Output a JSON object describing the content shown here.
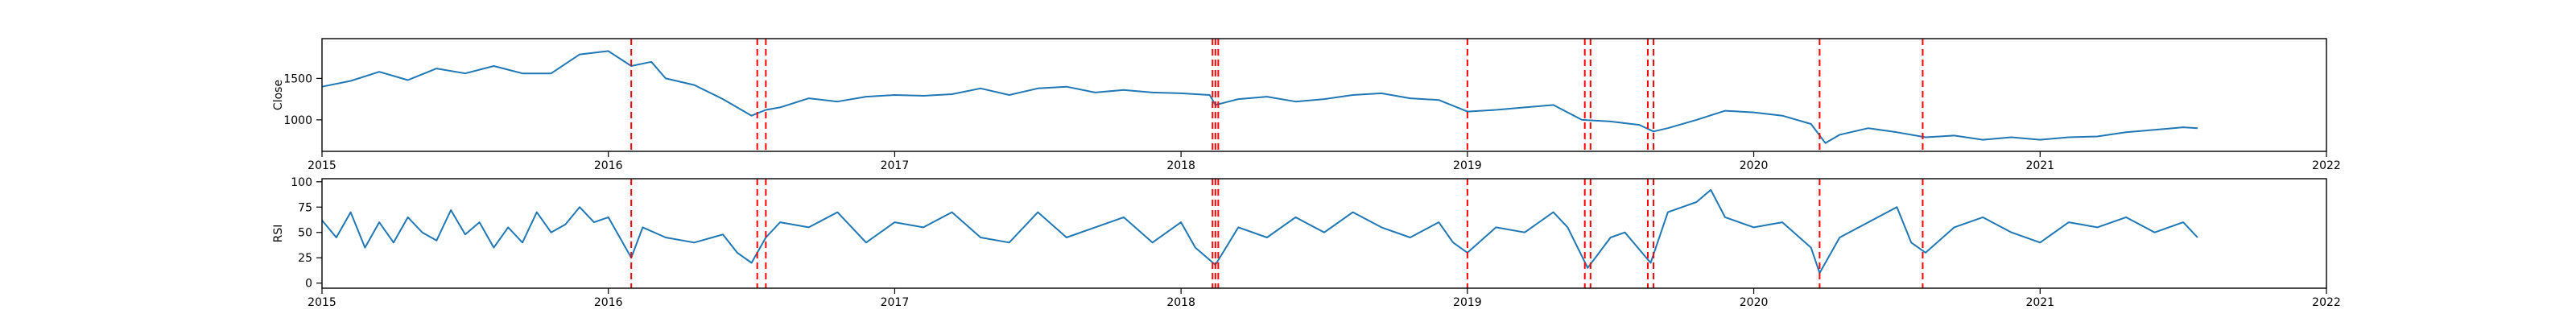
{
  "chart_data": [
    {
      "type": "line",
      "ylabel": "Close",
      "xlabel": "",
      "xlim": [
        2015.0,
        2022.0
      ],
      "ylim": [
        620,
        1980
      ],
      "x_ticks": [
        2015,
        2016,
        2017,
        2018,
        2019,
        2020,
        2021,
        2022
      ],
      "x_tick_labels": [
        "2015",
        "2016",
        "2017",
        "2018",
        "2019",
        "2020",
        "2021",
        "2022"
      ],
      "y_ticks": [
        1000,
        1500
      ],
      "y_tick_labels": [
        "1000",
        "1500"
      ],
      "grid": false,
      "series": [
        {
          "color": "#1f77b4",
          "x": [
            2015.0,
            2015.1,
            2015.2,
            2015.3,
            2015.4,
            2015.5,
            2015.6,
            2015.7,
            2015.8,
            2015.9,
            2016.0,
            2016.08,
            2016.15,
            2016.2,
            2016.3,
            2016.4,
            2016.5,
            2016.55,
            2016.6,
            2016.7,
            2016.8,
            2016.9,
            2017.0,
            2017.1,
            2017.2,
            2017.3,
            2017.4,
            2017.5,
            2017.6,
            2017.7,
            2017.8,
            2017.9,
            2018.0,
            2018.1,
            2018.12,
            2018.2,
            2018.3,
            2018.4,
            2018.5,
            2018.6,
            2018.7,
            2018.8,
            2018.9,
            2019.0,
            2019.1,
            2019.2,
            2019.3,
            2019.4,
            2019.5,
            2019.6,
            2019.65,
            2019.7,
            2019.8,
            2019.9,
            2020.0,
            2020.1,
            2020.2,
            2020.25,
            2020.3,
            2020.4,
            2020.5,
            2020.6,
            2020.7,
            2020.8,
            2020.9,
            2021.0,
            2021.1,
            2021.2,
            2021.3,
            2021.4,
            2021.5,
            2021.55
          ],
          "y": [
            1400,
            1470,
            1580,
            1480,
            1620,
            1560,
            1650,
            1560,
            1560,
            1790,
            1830,
            1650,
            1700,
            1500,
            1420,
            1250,
            1050,
            1120,
            1150,
            1260,
            1220,
            1280,
            1300,
            1290,
            1310,
            1380,
            1300,
            1380,
            1400,
            1330,
            1360,
            1330,
            1320,
            1300,
            1180,
            1250,
            1280,
            1220,
            1250,
            1300,
            1320,
            1260,
            1240,
            1100,
            1120,
            1150,
            1180,
            1000,
            980,
            940,
            860,
            900,
            1000,
            1110,
            1090,
            1050,
            950,
            720,
            820,
            900,
            850,
            790,
            810,
            760,
            790,
            760,
            790,
            800,
            850,
            880,
            910,
            900
          ]
        }
      ],
      "vlines": [
        2016.08,
        2016.52,
        2016.55,
        2018.11,
        2018.12,
        2018.13,
        2019.0,
        2019.41,
        2019.43,
        2019.63,
        2019.65,
        2020.23,
        2020.59
      ],
      "vline_color": "#ff0000"
    },
    {
      "type": "line",
      "ylabel": "RSI",
      "xlabel": "",
      "xlim": [
        2015.0,
        2022.0
      ],
      "ylim": [
        -5,
        103
      ],
      "x_ticks": [
        2015,
        2016,
        2017,
        2018,
        2019,
        2020,
        2021,
        2022
      ],
      "x_tick_labels": [
        "2015",
        "2016",
        "2017",
        "2018",
        "2019",
        "2020",
        "2021",
        "2022"
      ],
      "y_ticks": [
        0,
        25,
        50,
        75,
        100
      ],
      "y_tick_labels": [
        "0",
        "25",
        "50",
        "75",
        "100"
      ],
      "grid": false,
      "series": [
        {
          "color": "#1f77b4",
          "x": [
            2015.0,
            2015.05,
            2015.1,
            2015.15,
            2015.2,
            2015.25,
            2015.3,
            2015.35,
            2015.4,
            2015.45,
            2015.5,
            2015.55,
            2015.6,
            2015.65,
            2015.7,
            2015.75,
            2015.8,
            2015.85,
            2015.9,
            2015.95,
            2016.0,
            2016.05,
            2016.08,
            2016.12,
            2016.2,
            2016.3,
            2016.4,
            2016.45,
            2016.5,
            2016.55,
            2016.6,
            2016.7,
            2016.8,
            2016.9,
            2017.0,
            2017.1,
            2017.2,
            2017.3,
            2017.4,
            2017.5,
            2017.6,
            2017.7,
            2017.8,
            2017.9,
            2018.0,
            2018.05,
            2018.12,
            2018.2,
            2018.3,
            2018.4,
            2018.5,
            2018.6,
            2018.7,
            2018.8,
            2018.9,
            2018.95,
            2019.0,
            2019.1,
            2019.2,
            2019.3,
            2019.35,
            2019.42,
            2019.5,
            2019.55,
            2019.64,
            2019.7,
            2019.8,
            2019.85,
            2019.9,
            2020.0,
            2020.1,
            2020.2,
            2020.23,
            2020.3,
            2020.4,
            2020.5,
            2020.55,
            2020.6,
            2020.7,
            2020.8,
            2020.9,
            2021.0,
            2021.1,
            2021.2,
            2021.3,
            2021.4,
            2021.5,
            2021.55
          ],
          "y": [
            62,
            45,
            70,
            35,
            60,
            40,
            65,
            50,
            42,
            72,
            48,
            60,
            35,
            55,
            40,
            70,
            50,
            58,
            75,
            60,
            65,
            40,
            25,
            55,
            45,
            40,
            48,
            30,
            20,
            45,
            60,
            55,
            70,
            40,
            60,
            55,
            70,
            45,
            40,
            70,
            45,
            55,
            65,
            40,
            60,
            35,
            18,
            55,
            45,
            65,
            50,
            70,
            55,
            45,
            60,
            40,
            30,
            55,
            50,
            70,
            55,
            15,
            45,
            50,
            20,
            70,
            80,
            92,
            65,
            55,
            60,
            35,
            10,
            45,
            60,
            75,
            40,
            30,
            55,
            65,
            50,
            40,
            60,
            55,
            65,
            50,
            60,
            45
          ]
        }
      ],
      "vlines": [
        2016.08,
        2016.52,
        2016.55,
        2018.11,
        2018.12,
        2018.13,
        2019.0,
        2019.41,
        2019.43,
        2019.63,
        2019.65,
        2020.23,
        2020.59
      ],
      "vline_color": "#ff0000"
    }
  ]
}
